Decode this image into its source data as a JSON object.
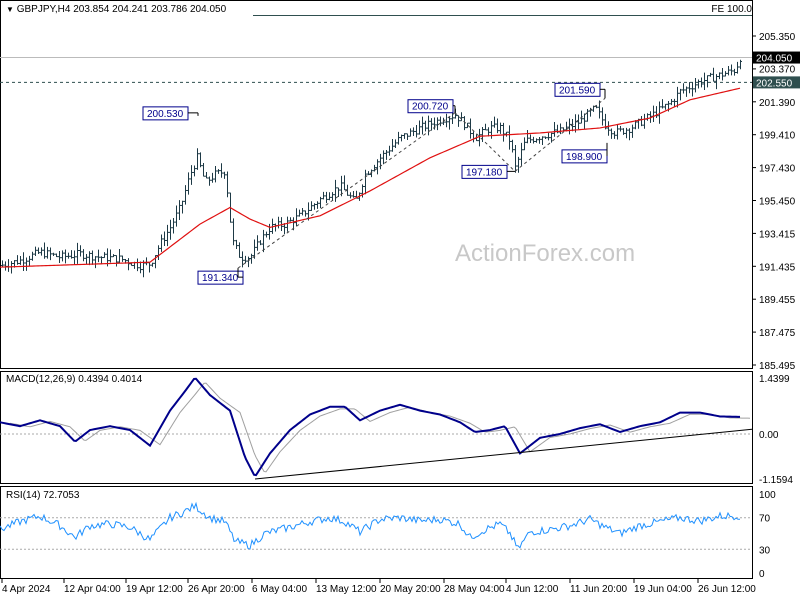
{
  "header": {
    "symbol": "GBPJPY,H4",
    "ohlc": "203.854 204.241 203.786 204.050",
    "fe_label": "FE 100.0"
  },
  "watermark": "ActionForex.com",
  "colors": {
    "bars": "#1e3a46",
    "ma": "#e01010",
    "macd": "#00008b",
    "signal": "#a0a0a0",
    "rsi": "#1e90ff",
    "label_border": "#00008b"
  },
  "chart_data": [
    {
      "type": "ohlc",
      "title": "GBPJPY,H4",
      "price_ticks": [
        "205.350",
        "203.370",
        "201.390",
        "199.410",
        "197.430",
        "195.450",
        "193.415",
        "191.435",
        "189.455",
        "187.475",
        "185.495"
      ],
      "ylim": [
        185.495,
        205.35
      ],
      "current_price": "204.050",
      "current_label2": "203.370",
      "level_line": "202.550",
      "x_ticks": [
        "4 Apr 2024",
        "12 Apr 04:00",
        "19 Apr 12:00",
        "26 Apr 20:00",
        "6 May 04:00",
        "13 May 12:00",
        "20 May 20:00",
        "28 May 04:00",
        "4 Jun 12:00",
        "11 Jun 20:00",
        "19 Jun 04:00",
        "26 Jun 12:00"
      ],
      "close_path": [
        [
          0,
          191.5
        ],
        [
          20,
          191.8
        ],
        [
          40,
          192.3
        ],
        [
          60,
          192.0
        ],
        [
          80,
          192.2
        ],
        [
          100,
          192.0
        ],
        [
          120,
          191.9
        ],
        [
          140,
          191.5
        ],
        [
          150,
          191.6
        ],
        [
          160,
          192.8
        ],
        [
          170,
          193.8
        ],
        [
          180,
          195.0
        ],
        [
          190,
          197.0
        ],
        [
          197,
          198.0
        ],
        [
          205,
          196.5
        ],
        [
          215,
          197.0
        ],
        [
          225,
          197.2
        ],
        [
          232,
          193.0
        ],
        [
          240,
          192.0
        ],
        [
          250,
          192.0
        ],
        [
          260,
          193.0
        ],
        [
          270,
          193.8
        ],
        [
          285,
          194.0
        ],
        [
          300,
          194.5
        ],
        [
          320,
          195.5
        ],
        [
          340,
          196.3
        ],
        [
          355,
          195.3
        ],
        [
          365,
          197.0
        ],
        [
          380,
          198.0
        ],
        [
          400,
          199.2
        ],
        [
          420,
          199.8
        ],
        [
          440,
          200.3
        ],
        [
          455,
          200.6
        ],
        [
          465,
          200.0
        ],
        [
          475,
          199.2
        ],
        [
          490,
          199.8
        ],
        [
          500,
          199.8
        ],
        [
          510,
          199.0
        ],
        [
          515,
          197.4
        ],
        [
          525,
          199.0
        ],
        [
          540,
          199.3
        ],
        [
          560,
          199.6
        ],
        [
          580,
          200.2
        ],
        [
          595,
          201.0
        ],
        [
          605,
          200.0
        ],
        [
          615,
          199.5
        ],
        [
          630,
          199.8
        ],
        [
          650,
          200.5
        ],
        [
          670,
          201.3
        ],
        [
          680,
          202.0
        ],
        [
          700,
          202.6
        ],
        [
          720,
          203.0
        ],
        [
          735,
          203.3
        ],
        [
          740,
          204.05
        ]
      ],
      "ma_path": [
        [
          0,
          191.4
        ],
        [
          150,
          191.7
        ],
        [
          200,
          194.0
        ],
        [
          230,
          195.0
        ],
        [
          250,
          194.3
        ],
        [
          270,
          193.8
        ],
        [
          320,
          194.5
        ],
        [
          370,
          196.0
        ],
        [
          430,
          198.0
        ],
        [
          480,
          199.3
        ],
        [
          540,
          199.5
        ],
        [
          600,
          199.8
        ],
        [
          650,
          200.4
        ],
        [
          690,
          201.5
        ],
        [
          740,
          202.2
        ]
      ],
      "annotations": [
        {
          "text": "200.530",
          "price": 200.53,
          "pos": 198
        },
        {
          "text": "191.340",
          "price": 191.34,
          "pos": 238
        },
        {
          "text": "200.720",
          "price": 200.72,
          "pos": 455
        },
        {
          "text": "197.180",
          "price": 197.18,
          "pos": 515
        },
        {
          "text": "201.590",
          "price": 201.59,
          "pos": 605
        },
        {
          "text": "198.900",
          "price": 198.9,
          "pos": 607
        }
      ]
    },
    {
      "type": "line",
      "title": "MACD(12,26,9) 0.4394 0.4014",
      "ticks": [
        "1.4399",
        "0.00",
        "-1.1594"
      ],
      "ylim": [
        -1.1594,
        1.4399
      ],
      "macd_path": [
        [
          0,
          0.3
        ],
        [
          20,
          0.2
        ],
        [
          40,
          0.35
        ],
        [
          60,
          0.2
        ],
        [
          75,
          -0.2
        ],
        [
          90,
          0.1
        ],
        [
          110,
          0.2
        ],
        [
          130,
          0.1
        ],
        [
          150,
          -0.3
        ],
        [
          170,
          0.6
        ],
        [
          185,
          1.1
        ],
        [
          195,
          1.45
        ],
        [
          210,
          1.0
        ],
        [
          230,
          0.6
        ],
        [
          245,
          -0.6
        ],
        [
          255,
          -1.1
        ],
        [
          270,
          -0.5
        ],
        [
          290,
          0.1
        ],
        [
          310,
          0.5
        ],
        [
          330,
          0.7
        ],
        [
          345,
          0.7
        ],
        [
          360,
          0.35
        ],
        [
          380,
          0.6
        ],
        [
          400,
          0.75
        ],
        [
          420,
          0.6
        ],
        [
          440,
          0.5
        ],
        [
          460,
          0.3
        ],
        [
          475,
          0.05
        ],
        [
          490,
          0.1
        ],
        [
          505,
          0.2
        ],
        [
          520,
          -0.5
        ],
        [
          540,
          -0.1
        ],
        [
          560,
          0.0
        ],
        [
          580,
          0.15
        ],
        [
          600,
          0.25
        ],
        [
          620,
          0.05
        ],
        [
          640,
          0.2
        ],
        [
          660,
          0.3
        ],
        [
          680,
          0.55
        ],
        [
          700,
          0.55
        ],
        [
          720,
          0.45
        ],
        [
          740,
          0.44
        ]
      ],
      "trendline": [
        [
          255,
          -1.16
        ],
        [
          752,
          0.12
        ]
      ]
    },
    {
      "type": "line",
      "title": "RSI(14) 72.7053",
      "ticks": [
        "100",
        "70",
        "30",
        "0"
      ],
      "ylim": [
        0,
        100
      ],
      "rsi_path": [
        [
          0,
          55
        ],
        [
          20,
          65
        ],
        [
          40,
          72
        ],
        [
          60,
          60
        ],
        [
          75,
          45
        ],
        [
          90,
          60
        ],
        [
          110,
          62
        ],
        [
          130,
          58
        ],
        [
          150,
          42
        ],
        [
          170,
          70
        ],
        [
          185,
          78
        ],
        [
          195,
          85
        ],
        [
          210,
          70
        ],
        [
          225,
          65
        ],
        [
          235,
          40
        ],
        [
          250,
          35
        ],
        [
          265,
          50
        ],
        [
          290,
          58
        ],
        [
          310,
          65
        ],
        [
          330,
          70
        ],
        [
          345,
          65
        ],
        [
          360,
          52
        ],
        [
          380,
          68
        ],
        [
          400,
          70
        ],
        [
          420,
          66
        ],
        [
          440,
          68
        ],
        [
          460,
          62
        ],
        [
          470,
          45
        ],
        [
          485,
          55
        ],
        [
          500,
          62
        ],
        [
          510,
          50
        ],
        [
          518,
          30
        ],
        [
          530,
          52
        ],
        [
          550,
          55
        ],
        [
          570,
          60
        ],
        [
          590,
          68
        ],
        [
          605,
          58
        ],
        [
          620,
          50
        ],
        [
          640,
          60
        ],
        [
          660,
          65
        ],
        [
          680,
          70
        ],
        [
          700,
          66
        ],
        [
          720,
          72
        ],
        [
          740,
          72.7
        ]
      ]
    }
  ]
}
